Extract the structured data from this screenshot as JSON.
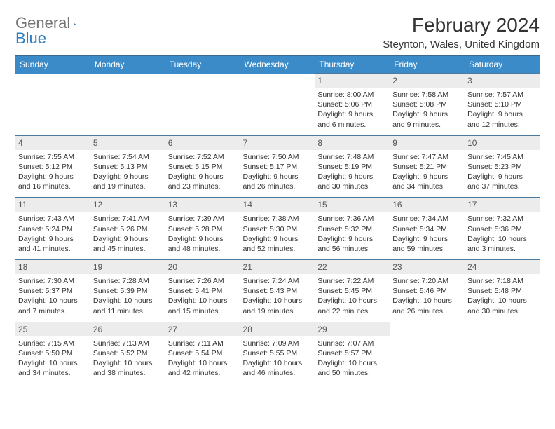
{
  "logo": {
    "gray": "General",
    "blue": "Blue"
  },
  "title": "February 2024",
  "location": "Steynton, Wales, United Kingdom",
  "colors": {
    "header_bg": "#3b8bc8",
    "header_border": "#3b6a90",
    "row_border": "#4a7a9e",
    "daynum_bg": "#ececec",
    "logo_gray": "#757575",
    "logo_blue": "#2d7cc0"
  },
  "day_names": [
    "Sunday",
    "Monday",
    "Tuesday",
    "Wednesday",
    "Thursday",
    "Friday",
    "Saturday"
  ],
  "weeks": [
    [
      null,
      null,
      null,
      null,
      {
        "n": "1",
        "sr": "8:00 AM",
        "ss": "5:06 PM",
        "dl": "9 hours and 6 minutes."
      },
      {
        "n": "2",
        "sr": "7:58 AM",
        "ss": "5:08 PM",
        "dl": "9 hours and 9 minutes."
      },
      {
        "n": "3",
        "sr": "7:57 AM",
        "ss": "5:10 PM",
        "dl": "9 hours and 12 minutes."
      }
    ],
    [
      {
        "n": "4",
        "sr": "7:55 AM",
        "ss": "5:12 PM",
        "dl": "9 hours and 16 minutes."
      },
      {
        "n": "5",
        "sr": "7:54 AM",
        "ss": "5:13 PM",
        "dl": "9 hours and 19 minutes."
      },
      {
        "n": "6",
        "sr": "7:52 AM",
        "ss": "5:15 PM",
        "dl": "9 hours and 23 minutes."
      },
      {
        "n": "7",
        "sr": "7:50 AM",
        "ss": "5:17 PM",
        "dl": "9 hours and 26 minutes."
      },
      {
        "n": "8",
        "sr": "7:48 AM",
        "ss": "5:19 PM",
        "dl": "9 hours and 30 minutes."
      },
      {
        "n": "9",
        "sr": "7:47 AM",
        "ss": "5:21 PM",
        "dl": "9 hours and 34 minutes."
      },
      {
        "n": "10",
        "sr": "7:45 AM",
        "ss": "5:23 PM",
        "dl": "9 hours and 37 minutes."
      }
    ],
    [
      {
        "n": "11",
        "sr": "7:43 AM",
        "ss": "5:24 PM",
        "dl": "9 hours and 41 minutes."
      },
      {
        "n": "12",
        "sr": "7:41 AM",
        "ss": "5:26 PM",
        "dl": "9 hours and 45 minutes."
      },
      {
        "n": "13",
        "sr": "7:39 AM",
        "ss": "5:28 PM",
        "dl": "9 hours and 48 minutes."
      },
      {
        "n": "14",
        "sr": "7:38 AM",
        "ss": "5:30 PM",
        "dl": "9 hours and 52 minutes."
      },
      {
        "n": "15",
        "sr": "7:36 AM",
        "ss": "5:32 PM",
        "dl": "9 hours and 56 minutes."
      },
      {
        "n": "16",
        "sr": "7:34 AM",
        "ss": "5:34 PM",
        "dl": "9 hours and 59 minutes."
      },
      {
        "n": "17",
        "sr": "7:32 AM",
        "ss": "5:36 PM",
        "dl": "10 hours and 3 minutes."
      }
    ],
    [
      {
        "n": "18",
        "sr": "7:30 AM",
        "ss": "5:37 PM",
        "dl": "10 hours and 7 minutes."
      },
      {
        "n": "19",
        "sr": "7:28 AM",
        "ss": "5:39 PM",
        "dl": "10 hours and 11 minutes."
      },
      {
        "n": "20",
        "sr": "7:26 AM",
        "ss": "5:41 PM",
        "dl": "10 hours and 15 minutes."
      },
      {
        "n": "21",
        "sr": "7:24 AM",
        "ss": "5:43 PM",
        "dl": "10 hours and 19 minutes."
      },
      {
        "n": "22",
        "sr": "7:22 AM",
        "ss": "5:45 PM",
        "dl": "10 hours and 22 minutes."
      },
      {
        "n": "23",
        "sr": "7:20 AM",
        "ss": "5:46 PM",
        "dl": "10 hours and 26 minutes."
      },
      {
        "n": "24",
        "sr": "7:18 AM",
        "ss": "5:48 PM",
        "dl": "10 hours and 30 minutes."
      }
    ],
    [
      {
        "n": "25",
        "sr": "7:15 AM",
        "ss": "5:50 PM",
        "dl": "10 hours and 34 minutes."
      },
      {
        "n": "26",
        "sr": "7:13 AM",
        "ss": "5:52 PM",
        "dl": "10 hours and 38 minutes."
      },
      {
        "n": "27",
        "sr": "7:11 AM",
        "ss": "5:54 PM",
        "dl": "10 hours and 42 minutes."
      },
      {
        "n": "28",
        "sr": "7:09 AM",
        "ss": "5:55 PM",
        "dl": "10 hours and 46 minutes."
      },
      {
        "n": "29",
        "sr": "7:07 AM",
        "ss": "5:57 PM",
        "dl": "10 hours and 50 minutes."
      },
      null,
      null
    ]
  ],
  "labels": {
    "sunrise": "Sunrise:",
    "sunset": "Sunset:",
    "daylight": "Daylight:"
  }
}
